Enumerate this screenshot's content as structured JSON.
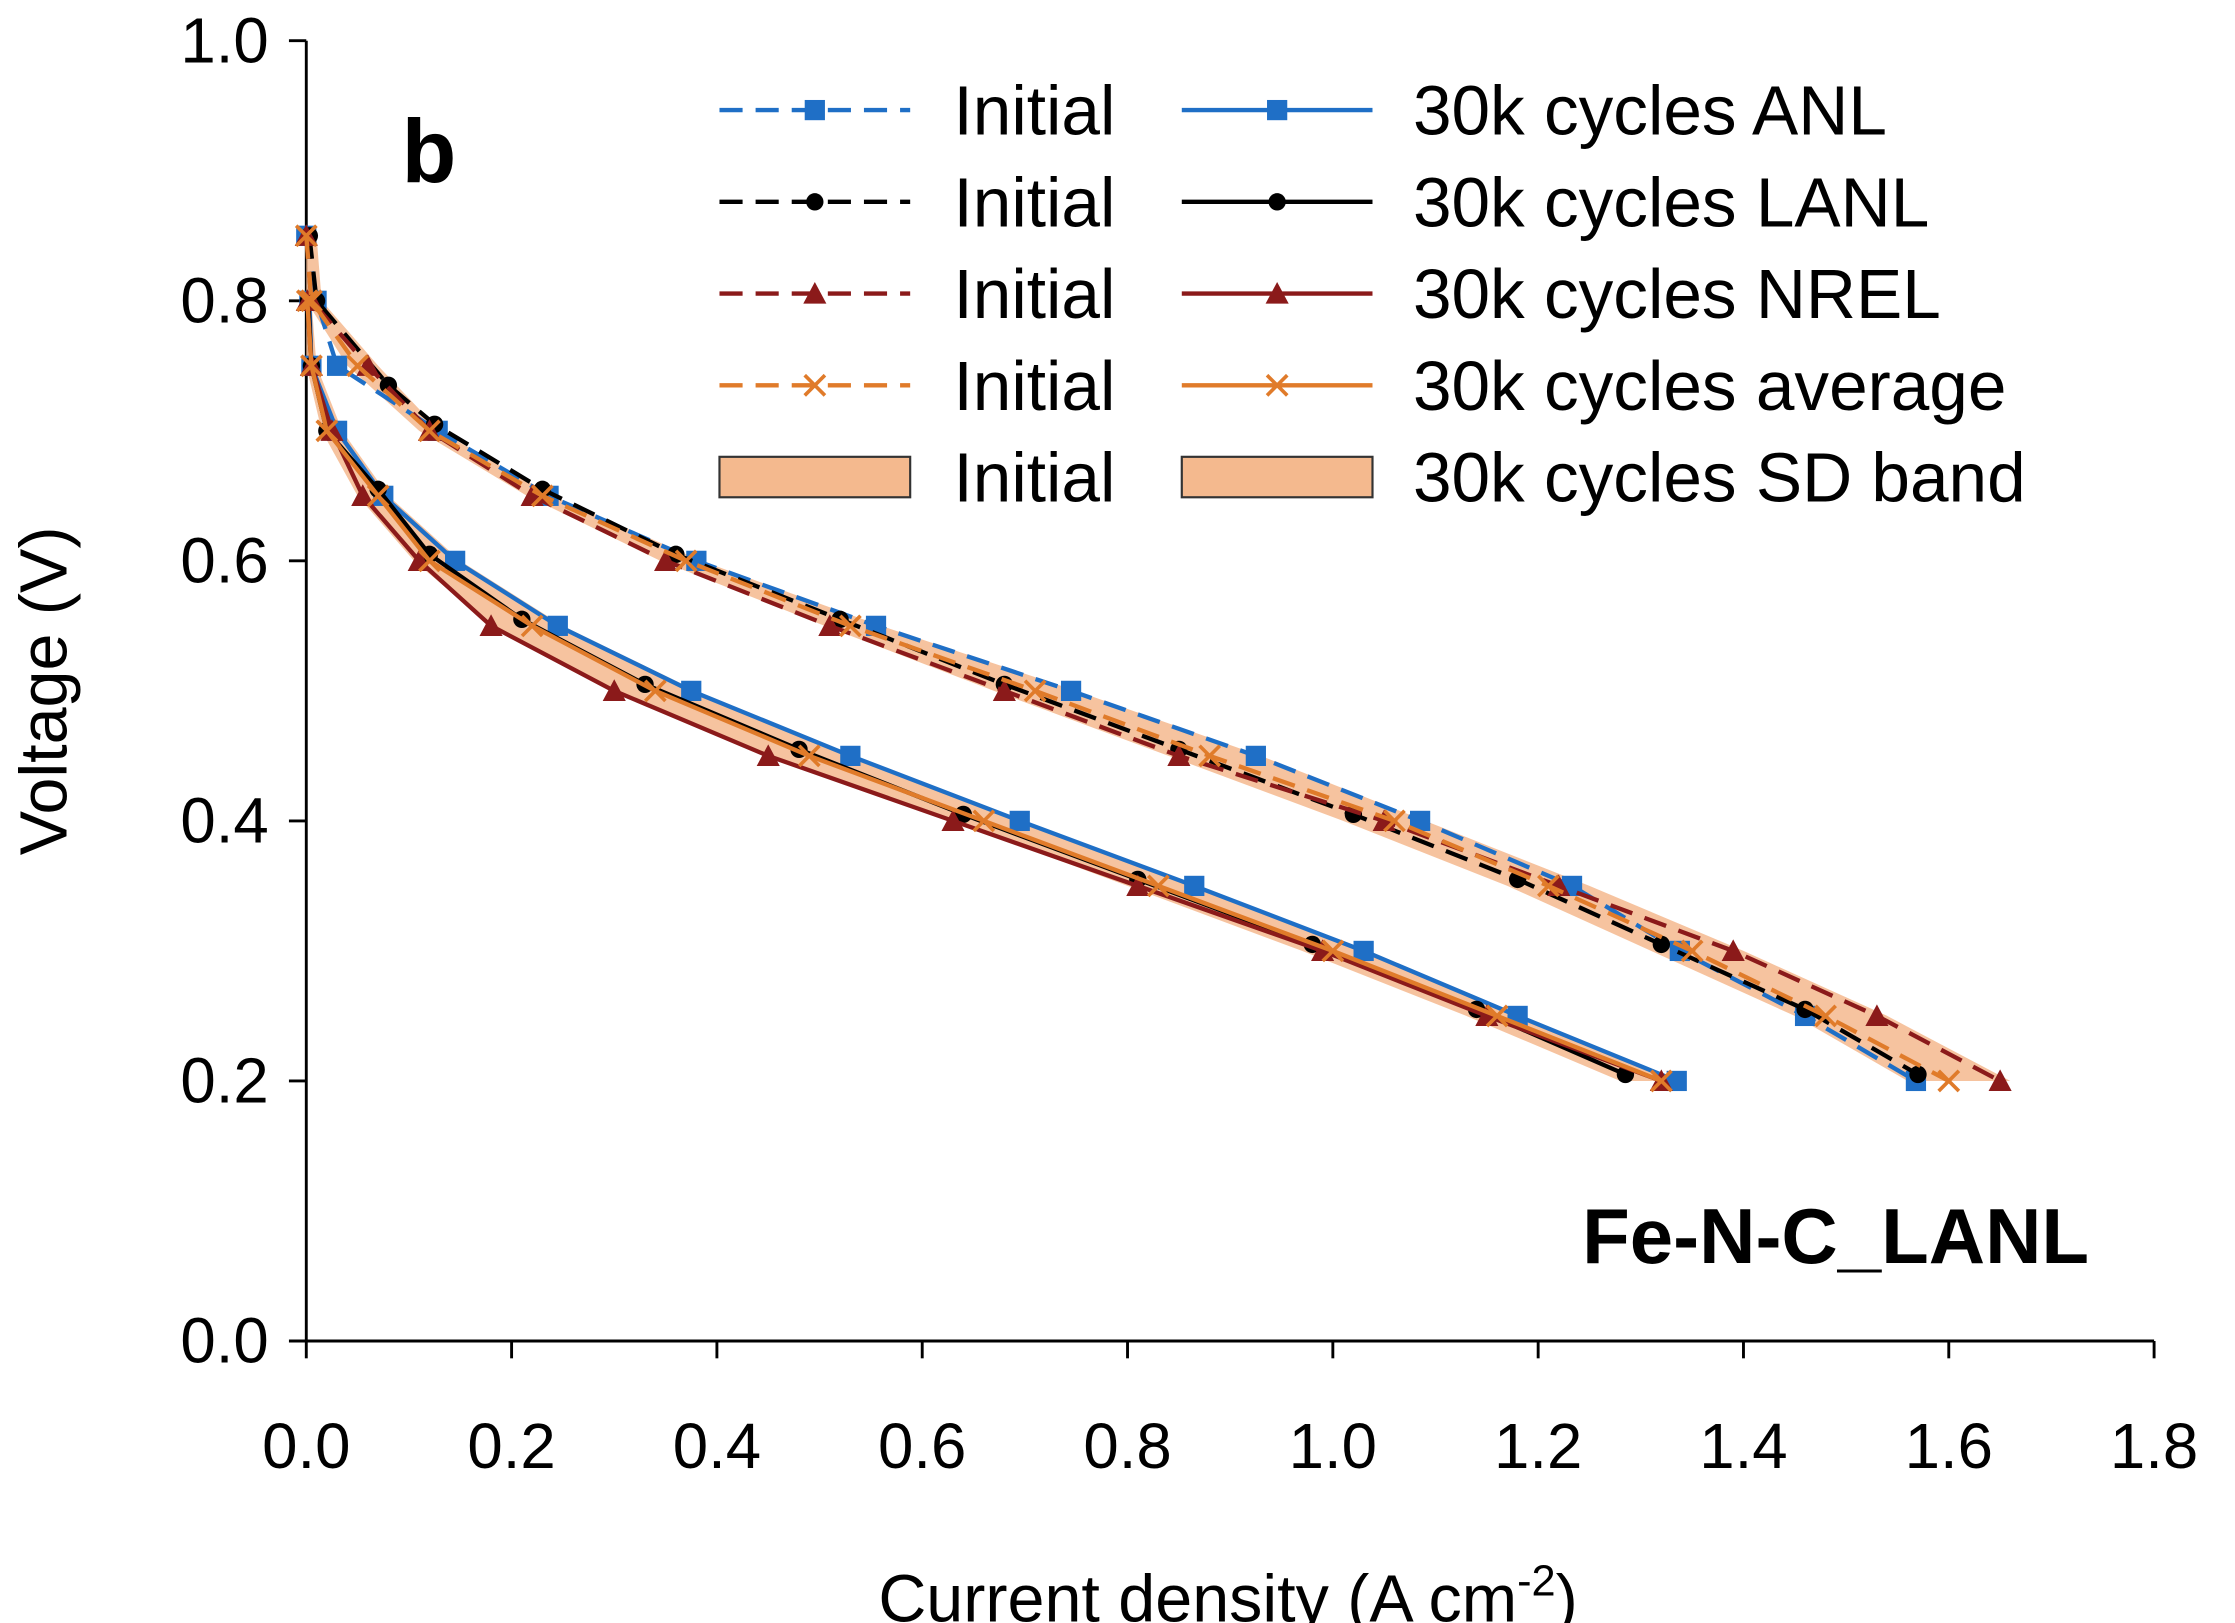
{
  "chart_data": {
    "type": "line",
    "xlabel": "Current density (A cm",
    "xlabel_sup": "-2",
    "xlabel_end": ")",
    "ylabel": "Voltage (V)",
    "annotations": [
      "b",
      "Fe-N-C_LANL"
    ],
    "xlim": [
      0,
      1.8
    ],
    "ylim": [
      0,
      1.0
    ],
    "xticks": [
      {
        "value": 0,
        "label": "0.0"
      },
      {
        "value": 0.2,
        "label": "0.2"
      },
      {
        "value": 0.4,
        "label": "0.4"
      },
      {
        "value": 0.6,
        "label": "0.6"
      },
      {
        "value": 0.8,
        "label": "0.8"
      },
      {
        "value": 1.0,
        "label": "1.0"
      },
      {
        "value": 1.2,
        "label": "1.2"
      },
      {
        "value": 1.4,
        "label": "1.4"
      },
      {
        "value": 1.6,
        "label": "1.6"
      },
      {
        "value": 1.8,
        "label": "1.8"
      }
    ],
    "yticks": [
      {
        "value": 0,
        "label": "0.0"
      },
      {
        "value": 0.2,
        "label": "0.2"
      },
      {
        "value": 0.4,
        "label": "0.4"
      },
      {
        "value": 0.6,
        "label": "0.6"
      },
      {
        "value": 0.8,
        "label": "0.8"
      },
      {
        "value": 1.0,
        "label": "1.0"
      }
    ],
    "series": [
      {
        "name": "Initial",
        "color": "#1f6fc6",
        "dash": true,
        "marker": "square",
        "x": [
          0.0,
          0.01,
          0.03,
          0.128,
          0.236,
          0.38,
          0.555,
          0.745,
          0.925,
          1.085,
          1.233,
          1.338,
          1.46,
          1.568
        ],
        "values": [
          0.85,
          0.8,
          0.75,
          0.7,
          0.65,
          0.6,
          0.55,
          0.5,
          0.45,
          0.4,
          0.35,
          0.3,
          0.25,
          0.2
        ]
      },
      {
        "name": "30k cycles ANL",
        "color": "#1f6fc6",
        "dash": false,
        "marker": "square",
        "x": [
          0.003,
          0.005,
          0.03,
          0.075,
          0.145,
          0.245,
          0.375,
          0.53,
          0.695,
          0.865,
          1.03,
          1.18,
          1.335
        ],
        "values": [
          0.8,
          0.75,
          0.7,
          0.65,
          0.6,
          0.55,
          0.5,
          0.45,
          0.4,
          0.35,
          0.3,
          0.25,
          0.2
        ]
      },
      {
        "name": "Initial",
        "color": "#000000",
        "dash": true,
        "marker": "circle",
        "x": [
          0.003,
          0.01,
          0.08,
          0.125,
          0.23,
          0.36,
          0.52,
          0.68,
          0.85,
          1.02,
          1.18,
          1.32,
          1.46,
          1.57
        ],
        "values": [
          0.85,
          0.8,
          0.735,
          0.705,
          0.655,
          0.605,
          0.555,
          0.505,
          0.455,
          0.405,
          0.355,
          0.305,
          0.255,
          0.205
        ]
      },
      {
        "name": "30k cycles LANL",
        "color": "#000000",
        "dash": false,
        "marker": "circle",
        "x": [
          0.002,
          0.005,
          0.02,
          0.07,
          0.12,
          0.21,
          0.33,
          0.48,
          0.64,
          0.81,
          0.98,
          1.14,
          1.285
        ],
        "values": [
          0.8,
          0.75,
          0.7,
          0.655,
          0.605,
          0.555,
          0.505,
          0.455,
          0.405,
          0.355,
          0.305,
          0.255,
          0.205
        ]
      },
      {
        "name": "Initial",
        "color": "#8b1a1a",
        "dash": true,
        "marker": "triangle",
        "x": [
          0.0,
          0.005,
          0.06,
          0.12,
          0.22,
          0.35,
          0.51,
          0.68,
          0.85,
          1.05,
          1.22,
          1.39,
          1.53,
          1.65
        ],
        "values": [
          0.85,
          0.8,
          0.75,
          0.7,
          0.65,
          0.6,
          0.55,
          0.5,
          0.45,
          0.4,
          0.35,
          0.3,
          0.25,
          0.2
        ]
      },
      {
        "name": "30k cycles NREL",
        "color": "#8b1a1a",
        "dash": false,
        "marker": "triangle",
        "x": [
          0.001,
          0.005,
          0.025,
          0.055,
          0.11,
          0.18,
          0.3,
          0.45,
          0.63,
          0.81,
          0.99,
          1.15,
          1.32
        ],
        "values": [
          0.8,
          0.75,
          0.7,
          0.65,
          0.6,
          0.55,
          0.5,
          0.45,
          0.4,
          0.35,
          0.3,
          0.25,
          0.2
        ]
      },
      {
        "name": "Initial",
        "color": "#e07b2a",
        "dash": true,
        "marker": "x",
        "x": [
          0.0,
          0.005,
          0.05,
          0.12,
          0.23,
          0.37,
          0.53,
          0.71,
          0.88,
          1.06,
          1.21,
          1.35,
          1.48,
          1.6
        ],
        "values": [
          0.85,
          0.8,
          0.75,
          0.7,
          0.65,
          0.6,
          0.55,
          0.5,
          0.45,
          0.4,
          0.35,
          0.3,
          0.25,
          0.2
        ]
      },
      {
        "name": "30k cycles average",
        "color": "#e07b2a",
        "dash": false,
        "marker": "x",
        "x": [
          0.001,
          0.005,
          0.02,
          0.07,
          0.12,
          0.22,
          0.34,
          0.49,
          0.66,
          0.83,
          1.0,
          1.16,
          1.32
        ],
        "values": [
          0.8,
          0.75,
          0.7,
          0.65,
          0.6,
          0.55,
          0.5,
          0.45,
          0.4,
          0.35,
          0.3,
          0.25,
          0.2
        ]
      },
      {
        "name": "Initial",
        "color": "#f4b98e",
        "band": true,
        "x_low": [
          0.0,
          0.0,
          0.04,
          0.11,
          0.215,
          0.345,
          0.505,
          0.67,
          0.84,
          1.01,
          1.17,
          1.31,
          1.45,
          1.56
        ],
        "x_high": [
          0.01,
          0.015,
          0.07,
          0.13,
          0.24,
          0.385,
          0.56,
          0.75,
          0.93,
          1.09,
          1.25,
          1.4,
          1.54,
          1.66
        ],
        "values": [
          0.85,
          0.8,
          0.75,
          0.7,
          0.65,
          0.6,
          0.55,
          0.5,
          0.45,
          0.4,
          0.35,
          0.3,
          0.25,
          0.2
        ]
      },
      {
        "name": "30k cycles SD band",
        "color": "#f4b98e",
        "band": true,
        "x_low": [
          0.0,
          0.0,
          0.015,
          0.05,
          0.105,
          0.18,
          0.3,
          0.45,
          0.63,
          0.8,
          0.97,
          1.13,
          1.28
        ],
        "x_high": [
          0.005,
          0.01,
          0.035,
          0.08,
          0.15,
          0.25,
          0.38,
          0.535,
          0.7,
          0.87,
          1.035,
          1.185,
          1.34
        ],
        "values": [
          0.8,
          0.75,
          0.7,
          0.65,
          0.6,
          0.55,
          0.5,
          0.45,
          0.4,
          0.35,
          0.3,
          0.25,
          0.2
        ]
      }
    ]
  }
}
